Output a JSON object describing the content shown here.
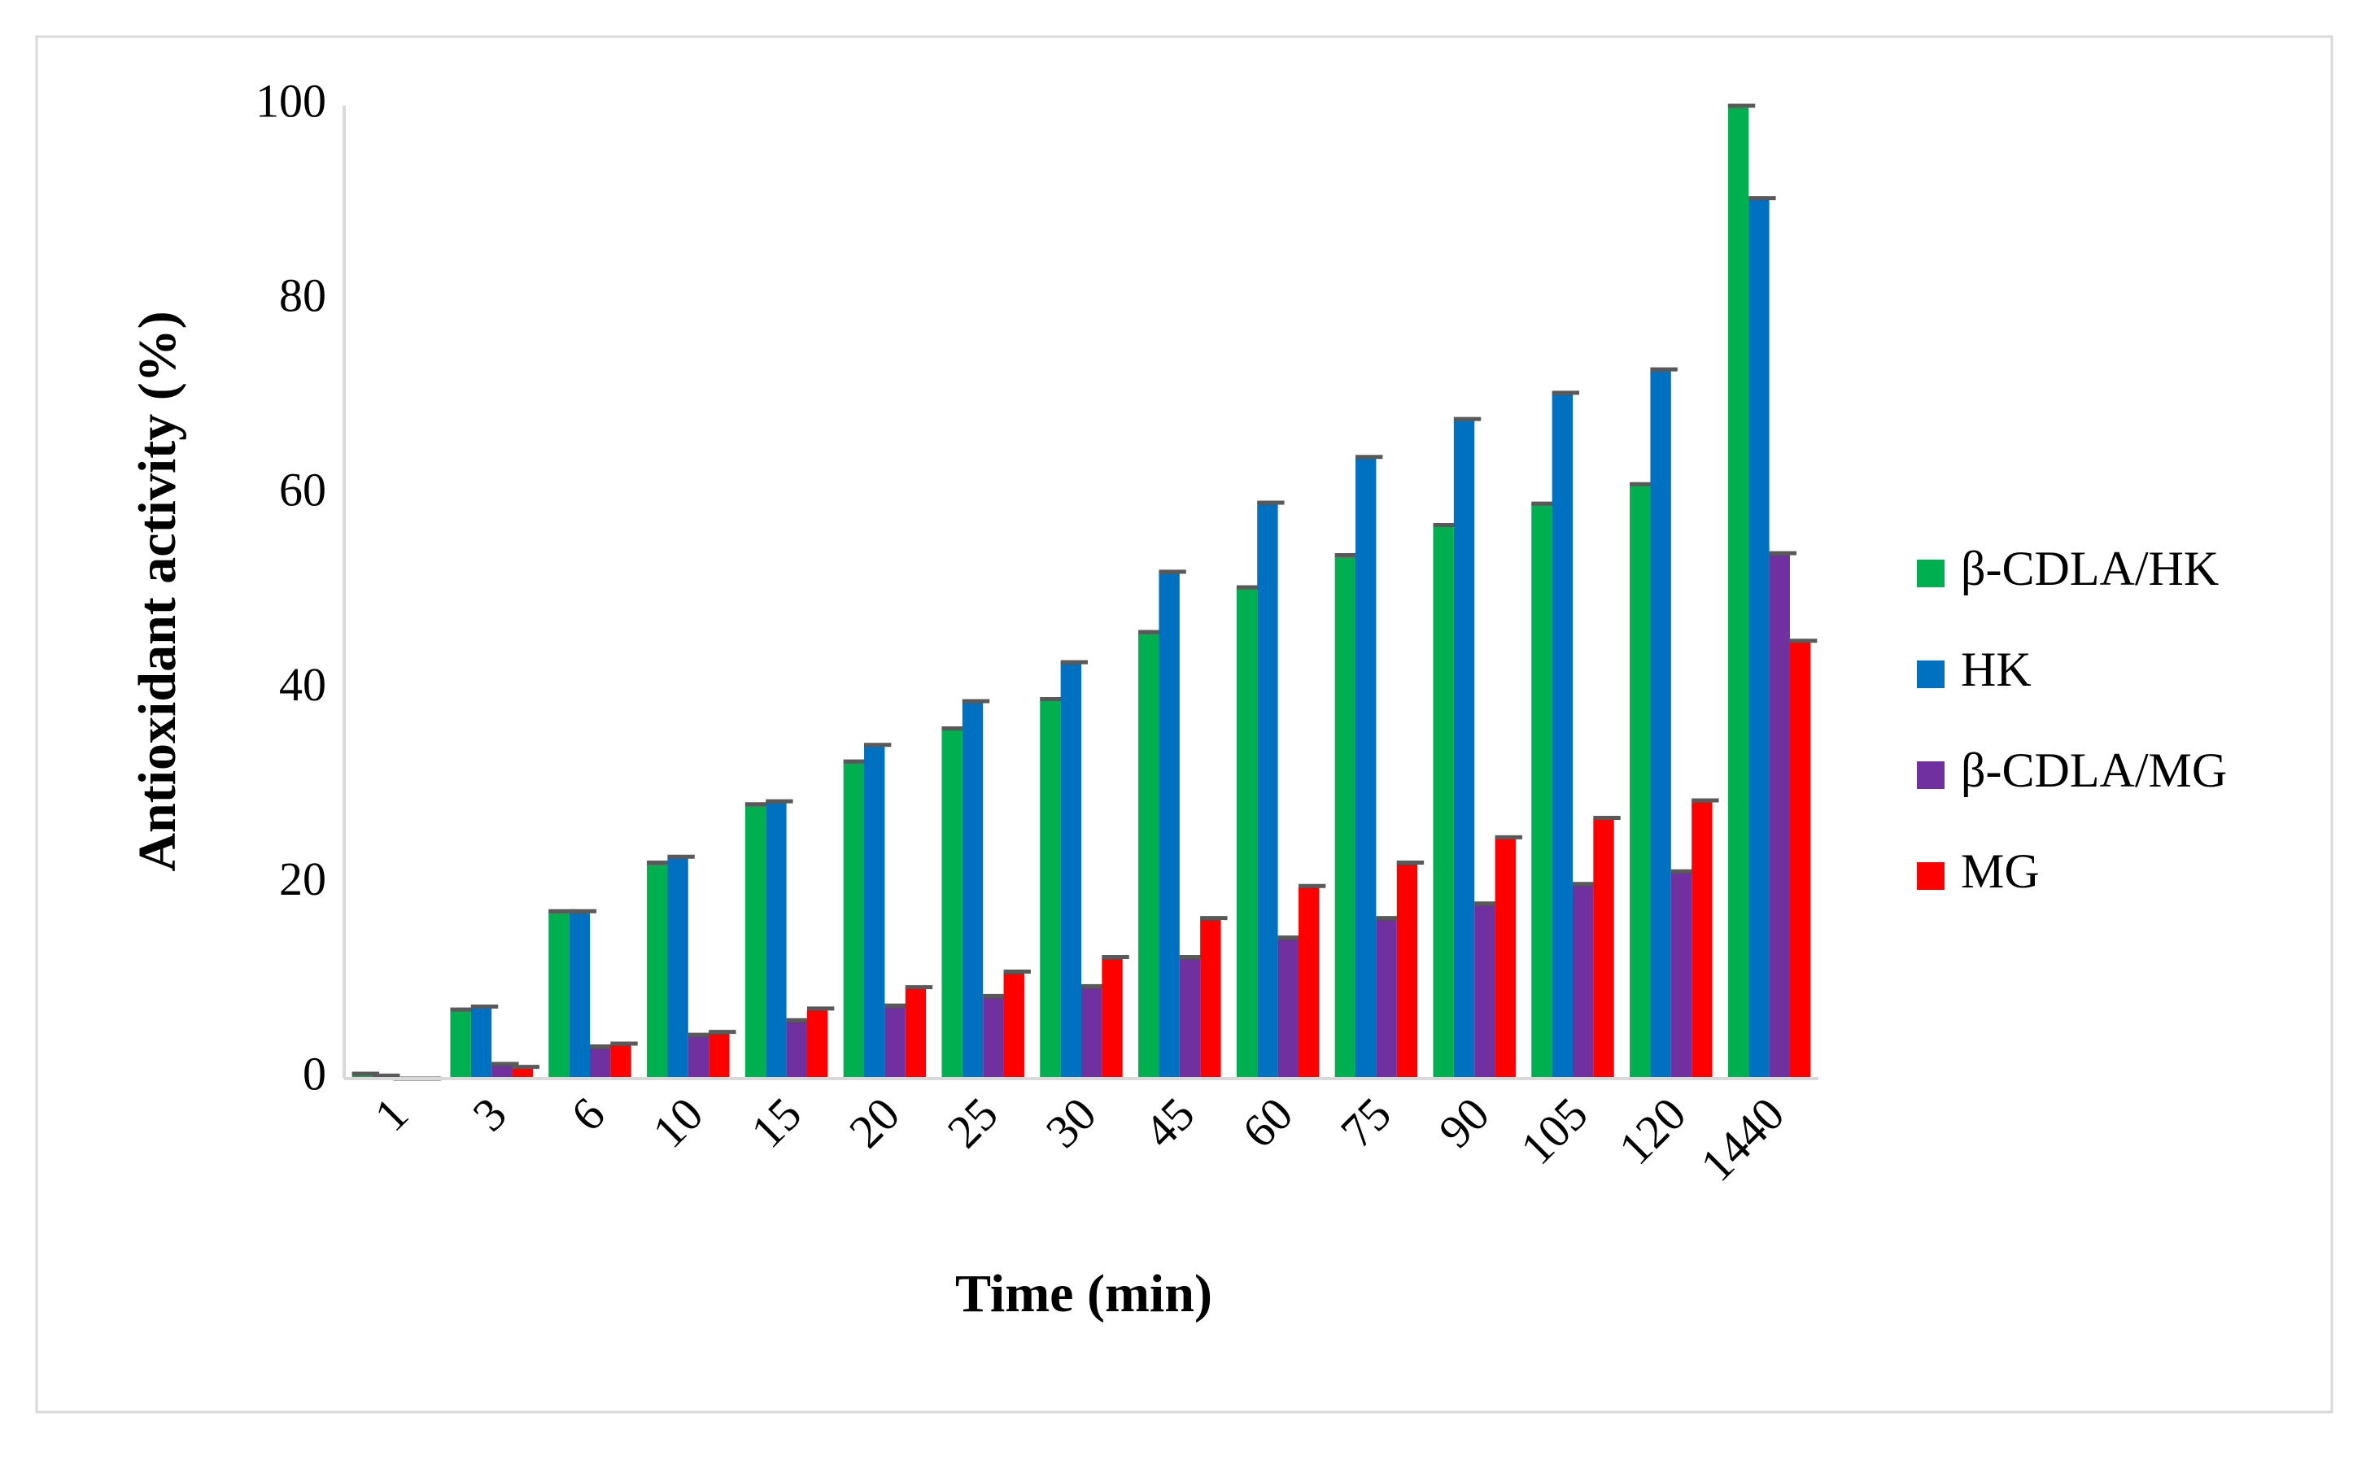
{
  "chart_data": {
    "type": "bar",
    "x_label": "Time (min)",
    "y_label": "Antioxidant activity (%)",
    "categories": [
      "1",
      "3",
      "6",
      "10",
      "15",
      "20",
      "25",
      "30",
      "45",
      "60",
      "75",
      "90",
      "105",
      "120",
      "1440"
    ],
    "series": [
      {
        "name": "β-CDLA/HK",
        "color": "#00b050",
        "values": [
          0.5,
          7.1,
          17.2,
          22.2,
          28.2,
          32.6,
          36,
          39,
          45.9,
          50.5,
          53.8,
          56.9,
          59.1,
          61.1,
          100
        ]
      },
      {
        "name": "HK",
        "color": "#0070c0",
        "values": [
          0.3,
          7.4,
          17.2,
          22.8,
          28.5,
          34.3,
          38.8,
          42.8,
          52.1,
          59.2,
          63.9,
          67.8,
          70.5,
          72.9,
          90.5
        ]
      },
      {
        "name": "β-CDLA/MG",
        "color": "#7030a0",
        "values": [
          0,
          1.5,
          3.3,
          4.5,
          6,
          7.5,
          8.5,
          9.5,
          12.5,
          14.5,
          16.5,
          18,
          20,
          21.3,
          54
        ]
      },
      {
        "name": "MG",
        "color": "#ff0000",
        "values": [
          0,
          1.2,
          3.6,
          4.8,
          7.2,
          9.4,
          11,
          12.5,
          16.5,
          19.8,
          22.2,
          24.8,
          26.8,
          28.6,
          45
        ]
      }
    ],
    "ylim": [
      0,
      100
    ],
    "yticks": [
      0,
      20,
      40,
      60,
      80,
      100
    ],
    "grid": false,
    "legend": "right"
  }
}
